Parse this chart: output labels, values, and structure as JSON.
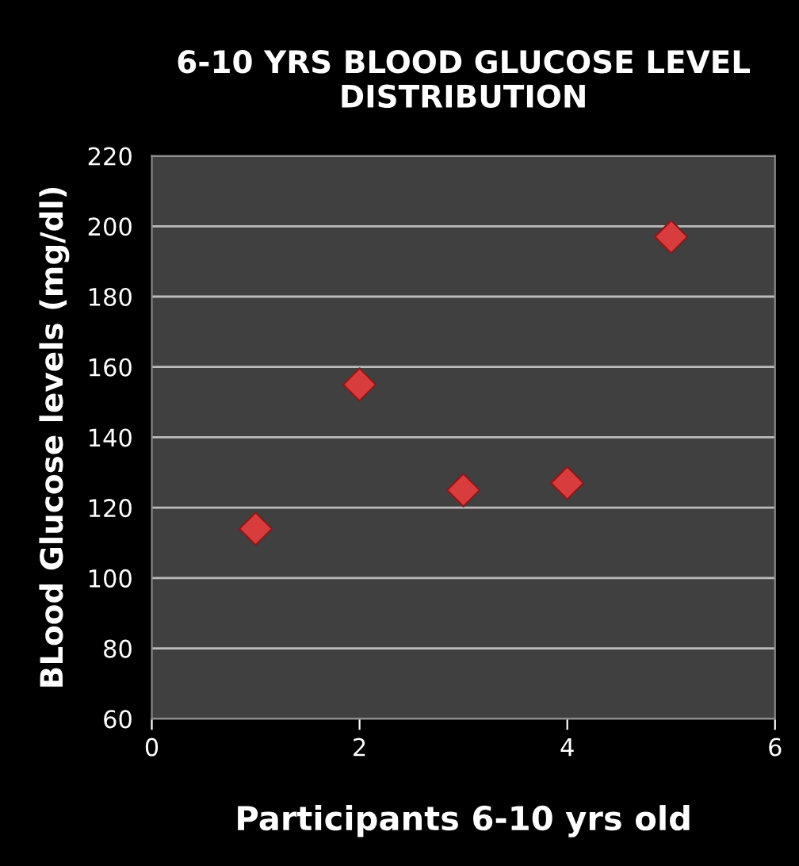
{
  "chart_data": {
    "type": "scatter",
    "title": "6-10 YRS BLOOD GLUCOSE LEVEL\nDISTRIBUTION",
    "xlabel": "Participants 6-10 yrs old",
    "ylabel": "BLood Glucose levels (mg/dl)",
    "x": [
      1,
      2,
      3,
      4,
      5
    ],
    "values": [
      114,
      155,
      125,
      127,
      197
    ],
    "color": "#d83c3c",
    "marker": "diamond",
    "xlim": [
      0,
      6
    ],
    "xticks": [
      0,
      2,
      4,
      6
    ],
    "ylim": [
      60,
      220
    ],
    "yticks": [
      60,
      80,
      100,
      120,
      140,
      160,
      180,
      200,
      220
    ],
    "grid": "y"
  }
}
